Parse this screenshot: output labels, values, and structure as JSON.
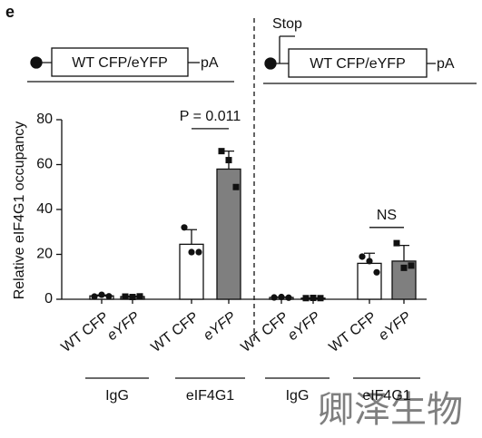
{
  "chart_data": {
    "type": "bar",
    "panel_label": "e",
    "constructs": [
      {
        "label": "WT CFP/eYFP",
        "tail": "pA"
      },
      {
        "label": "WT CFP/eYFP",
        "tail": "pA",
        "insert": "Stop"
      }
    ],
    "y_label": "Relative eIF4G1 occupancy",
    "categories": [
      "WT CFP",
      "eYFP",
      "WT CFP",
      "eYFP",
      "WT CFP",
      "eYFP",
      "WT CFP",
      "eYFP"
    ],
    "groups": [
      "IgG",
      "eIF4G1",
      "IgG",
      "eIF4G1"
    ],
    "values": [
      1.5,
      1.2,
      24.5,
      58,
      0.8,
      0.5,
      16,
      17
    ],
    "errors": [
      0.4,
      0.2,
      6.5,
      8,
      0.2,
      0.1,
      4.5,
      7
    ],
    "points": [
      [
        1.2,
        2,
        1.3
      ],
      [
        1.2,
        1,
        1.3
      ],
      [
        32,
        21,
        21
      ],
      [
        66,
        62,
        50
      ],
      [
        0.8,
        1,
        0.7
      ],
      [
        0.5,
        0.6,
        0.5
      ],
      [
        19,
        17,
        12
      ],
      [
        25,
        14,
        15
      ]
    ],
    "bar_colors": [
      "#ffffff",
      "#7f7f7f",
      "#ffffff",
      "#7f7f7f",
      "#ffffff",
      "#7f7f7f",
      "#ffffff",
      "#7f7f7f"
    ],
    "annotations": [
      "P = 0.011",
      "NS"
    ],
    "ylim": [
      0,
      80
    ],
    "yticks": [
      0,
      20,
      40,
      60,
      80
    ],
    "watermark": "卿泽生物"
  }
}
